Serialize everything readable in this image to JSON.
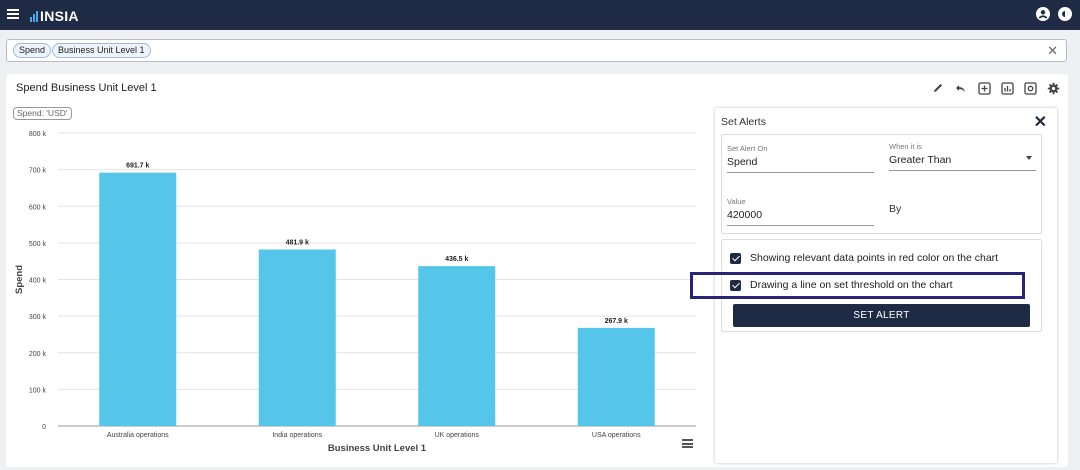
{
  "app": {
    "name": "INSIA"
  },
  "filters": {
    "chips": [
      "Spend",
      "Business Unit Level 1"
    ],
    "clear_icon": "close-icon"
  },
  "card": {
    "title": "Spend Business Unit Level 1",
    "unit_badge": "Spend: 'USD'"
  },
  "chart_data": {
    "type": "bar",
    "categories": [
      "Australia operations",
      "India operations",
      "UK operations",
      "USA operations"
    ],
    "values": [
      691.7,
      481.9,
      436.5,
      267.9
    ],
    "value_labels": [
      "691.7 k",
      "481.9 k",
      "436.5 k",
      "267.9 k"
    ],
    "yticks": [
      "0",
      "100 k",
      "200 k",
      "300 k",
      "400 k",
      "500 k",
      "600 k",
      "700 k",
      "800 k"
    ],
    "ylim": [
      0,
      800
    ],
    "xlabel": "Business Unit Level 1",
    "ylabel": "Spend",
    "bar_color": "#55c5ea",
    "grid": true
  },
  "alerts": {
    "title": "Set Alerts",
    "set_alert_on": {
      "label": "Set Alert On",
      "value": "Spend"
    },
    "when_it_is": {
      "label": "When it is",
      "value": "Greater Than"
    },
    "value_field": {
      "label": "Value",
      "value": "420000"
    },
    "by_label": "By",
    "options": [
      {
        "label": "Showing relevant data points in red color on the chart",
        "checked": true
      },
      {
        "label": "Drawing a line on set threshold on the chart",
        "checked": true
      }
    ],
    "button": "SET ALERT"
  },
  "colors": {
    "navbar": "#1f2b45",
    "accent": "#55c5ea",
    "highlight_border": "#2a2479"
  }
}
